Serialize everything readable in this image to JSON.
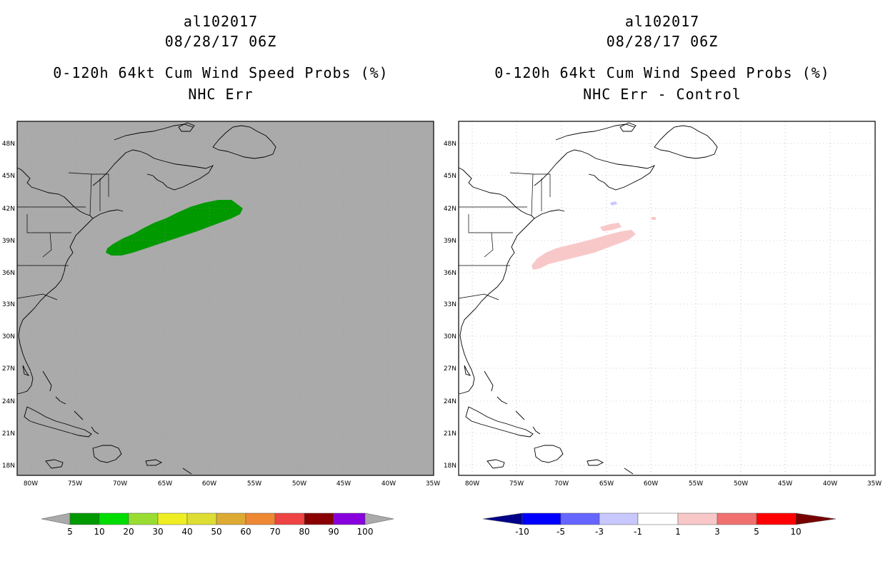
{
  "panels": [
    {
      "storm_id": "al102017",
      "datetime": "08/28/17 06Z",
      "product": "0-120h 64kt Cum Wind Speed Probs (%)",
      "subtitle": "NHC Err",
      "background_color": "#aaaaaa",
      "shading_color": "#009900"
    },
    {
      "storm_id": "al102017",
      "datetime": "08/28/17 06Z",
      "product": "0-120h 64kt Cum Wind Speed Probs (%)",
      "subtitle": "NHC Err - Control",
      "background_color": "#ffffff",
      "shading_color": "#f8c8c8",
      "minor_negative_color": "#c8c8ff"
    }
  ],
  "map": {
    "lon_labels": [
      "80W",
      "75W",
      "70W",
      "65W",
      "60W",
      "55W",
      "50W",
      "45W",
      "40W",
      "35W"
    ],
    "lat_labels": [
      "48N",
      "45N",
      "42N",
      "39N",
      "36N",
      "33N",
      "30N",
      "27N",
      "24N",
      "21N",
      "18N"
    ]
  },
  "colorbar_left": {
    "labels": [
      "5",
      "10",
      "20",
      "30",
      "40",
      "50",
      "60",
      "70",
      "80",
      "90",
      "100"
    ],
    "colors": [
      "#009900",
      "#00dd00",
      "#99dd33",
      "#eeee22",
      "#dddd33",
      "#ddaa33",
      "#ee8833",
      "#ee4444",
      "#880000",
      "#8800dd"
    ],
    "under_color": "#aaaaaa",
    "over_color": "#aaaaaa"
  },
  "colorbar_right": {
    "labels": [
      "-10",
      "-5",
      "-3",
      "-1",
      "1",
      "3",
      "5",
      "10"
    ],
    "colors": [
      "#0000ff",
      "#6666ff",
      "#c8c8ff",
      "#ffffff",
      "#f8c8c8",
      "#f07070",
      "#ff0000"
    ],
    "under_color": "#000088",
    "over_color": "#770000"
  }
}
